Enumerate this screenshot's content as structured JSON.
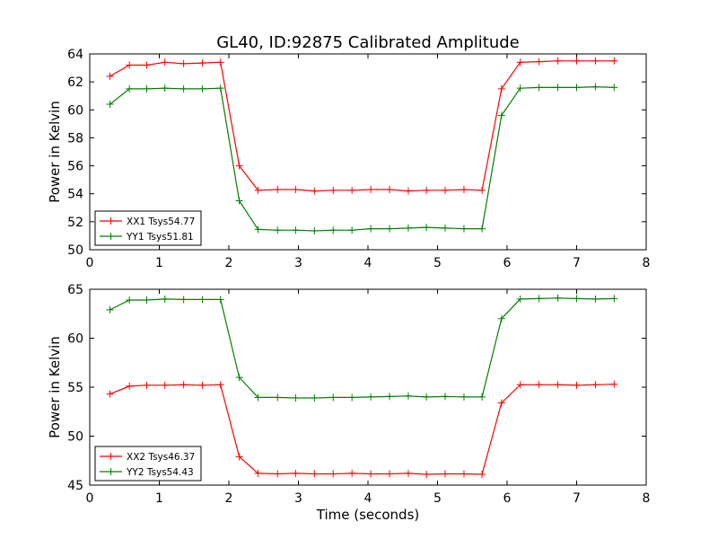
{
  "chart_data": [
    {
      "type": "line",
      "title": "GL40, ID:92875 Calibrated Amplitude",
      "xlabel": "",
      "ylabel": "Power in Kelvin",
      "xlim": [
        0,
        8
      ],
      "ylim": [
        50,
        64
      ],
      "xticks": [
        0,
        1,
        2,
        3,
        4,
        5,
        6,
        7,
        8
      ],
      "yticks": [
        50,
        52,
        54,
        56,
        58,
        60,
        62,
        64
      ],
      "legend_position": "lower-left",
      "x": [
        0.29,
        0.57,
        0.82,
        1.08,
        1.35,
        1.62,
        1.88,
        2.15,
        2.42,
        2.7,
        2.96,
        3.23,
        3.5,
        3.77,
        4.04,
        4.31,
        4.58,
        4.84,
        5.11,
        5.38,
        5.64,
        5.92,
        6.19,
        6.46,
        6.73,
        7.0,
        7.27,
        7.54
      ],
      "series": [
        {
          "name": "XX1 Tsys54.77",
          "color": "#ff0000",
          "values": [
            62.4,
            63.2,
            63.2,
            63.4,
            63.3,
            63.35,
            63.4,
            56.0,
            54.25,
            54.3,
            54.3,
            54.2,
            54.25,
            54.25,
            54.3,
            54.3,
            54.2,
            54.25,
            54.25,
            54.3,
            54.25,
            61.5,
            63.4,
            63.45,
            63.5,
            63.5,
            63.5,
            63.5
          ]
        },
        {
          "name": "YY1 Tsys51.81",
          "color": "#008000",
          "values": [
            60.4,
            61.5,
            61.5,
            61.55,
            61.5,
            61.5,
            61.55,
            53.5,
            51.45,
            51.4,
            51.4,
            51.35,
            51.4,
            51.4,
            51.5,
            51.5,
            51.55,
            51.6,
            51.55,
            51.5,
            51.5,
            59.6,
            61.55,
            61.6,
            61.6,
            61.6,
            61.65,
            61.6
          ]
        }
      ]
    },
    {
      "type": "line",
      "title": "",
      "xlabel": "Time (seconds)",
      "ylabel": "Power in Kelvin",
      "xlim": [
        0,
        8
      ],
      "ylim": [
        45,
        65
      ],
      "xticks": [
        0,
        1,
        2,
        3,
        4,
        5,
        6,
        7,
        8
      ],
      "yticks": [
        45,
        50,
        55,
        60,
        65
      ],
      "legend_position": "lower-left",
      "x": [
        0.29,
        0.57,
        0.82,
        1.08,
        1.35,
        1.62,
        1.88,
        2.15,
        2.42,
        2.7,
        2.96,
        3.23,
        3.5,
        3.77,
        4.04,
        4.31,
        4.58,
        4.84,
        5.11,
        5.38,
        5.64,
        5.92,
        6.19,
        6.46,
        6.73,
        7.0,
        7.27,
        7.54
      ],
      "series": [
        {
          "name": "XX2 Tsys46.37",
          "color": "#ff0000",
          "values": [
            54.3,
            55.1,
            55.2,
            55.2,
            55.25,
            55.2,
            55.25,
            47.9,
            46.2,
            46.15,
            46.2,
            46.15,
            46.15,
            46.2,
            46.15,
            46.15,
            46.2,
            46.1,
            46.15,
            46.15,
            46.1,
            53.4,
            55.25,
            55.25,
            55.25,
            55.2,
            55.25,
            55.3
          ]
        },
        {
          "name": "YY2 Tsys54.43",
          "color": "#008000",
          "values": [
            62.9,
            63.9,
            63.9,
            64.0,
            63.95,
            63.95,
            63.95,
            56.0,
            53.95,
            53.95,
            53.9,
            53.9,
            53.95,
            53.95,
            54.0,
            54.05,
            54.1,
            54.0,
            54.05,
            54.0,
            54.0,
            62.0,
            64.0,
            64.05,
            64.1,
            64.05,
            64.0,
            64.05
          ]
        }
      ]
    }
  ]
}
